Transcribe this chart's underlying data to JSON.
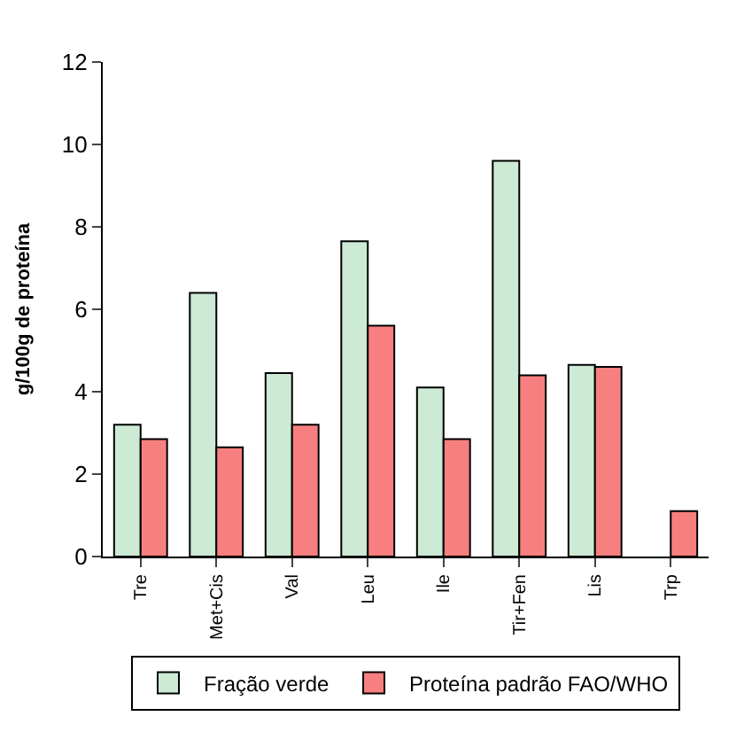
{
  "chart_data": {
    "type": "bar",
    "ylabel": "g/100g de proteína",
    "categories": [
      "Tre",
      "Met+Cis",
      "Val",
      "Leu",
      "Ile",
      "Tir+Fen",
      "Lis",
      "Trp"
    ],
    "series": [
      {
        "name": "Fração verde",
        "color": "#ccead4",
        "values": [
          3.2,
          6.4,
          4.45,
          7.65,
          4.1,
          9.6,
          4.65,
          null
        ]
      },
      {
        "name": "Proteína padrão FAO/WHO",
        "color": "#f87f7f",
        "values": [
          2.85,
          2.65,
          3.2,
          5.6,
          2.85,
          4.4,
          4.6,
          1.1
        ]
      }
    ],
    "ylim": [
      0,
      12
    ],
    "yticks": [
      0,
      2,
      4,
      6,
      8,
      10,
      12
    ],
    "legend": "bottom"
  }
}
